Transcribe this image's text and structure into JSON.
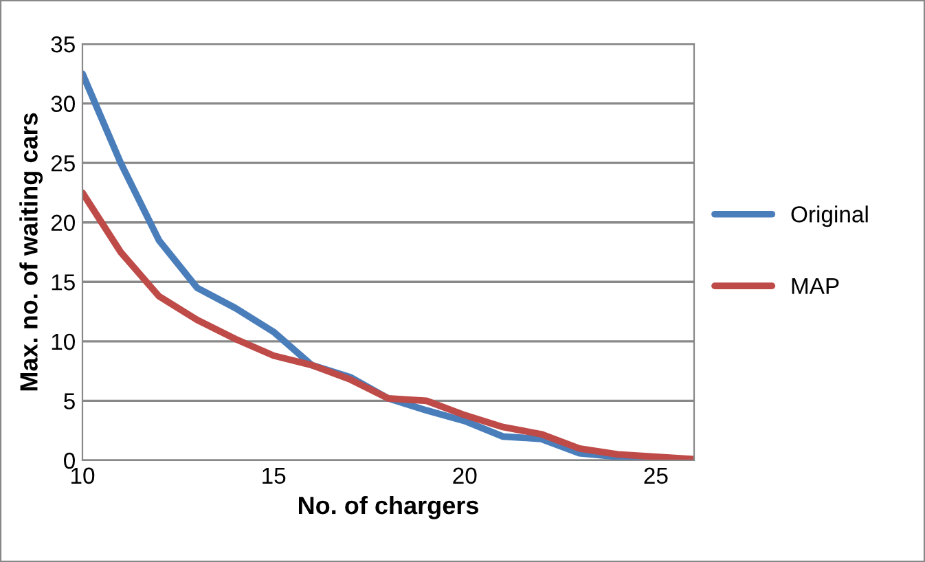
{
  "chart_data": {
    "type": "line",
    "xlabel": "No. of chargers",
    "ylabel": "Max. no. of waiting cars",
    "x": [
      10,
      11,
      12,
      13,
      14,
      15,
      16,
      17,
      18,
      19,
      20,
      21,
      22,
      23,
      24,
      25,
      26
    ],
    "series": [
      {
        "name": "Original",
        "color": "#4a7ebb",
        "values": [
          32.5,
          25,
          18.5,
          14.5,
          12.8,
          10.8,
          8,
          7,
          5.2,
          4.2,
          3.3,
          2,
          1.8,
          0.6,
          0.3,
          0.1,
          0
        ]
      },
      {
        "name": "MAP",
        "color": "#be4b48",
        "values": [
          22.5,
          17.5,
          13.8,
          11.8,
          10.2,
          8.8,
          8,
          6.8,
          5.2,
          5,
          3.8,
          2.8,
          2.2,
          1,
          0.5,
          0.3,
          0.1
        ]
      }
    ],
    "xlim": [
      10,
      26
    ],
    "xticks": [
      10,
      15,
      20,
      25
    ],
    "ylim": [
      0,
      35
    ],
    "yticks": [
      0,
      5,
      10,
      15,
      20,
      25,
      30,
      35
    ],
    "grid": "y",
    "legend": "right",
    "marker": "none",
    "line_style": "solid"
  }
}
